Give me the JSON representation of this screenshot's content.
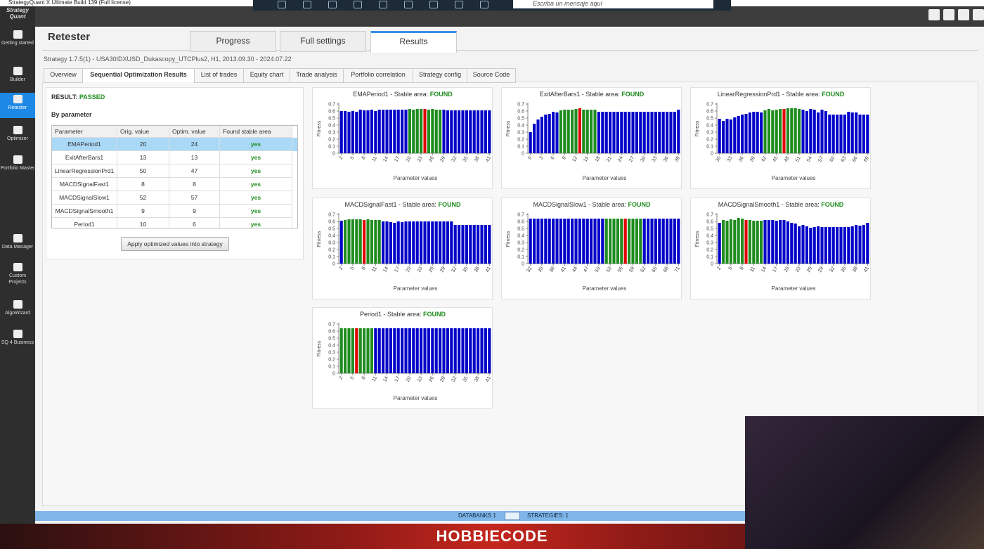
{
  "window_title": "StrategyQuant X Ultimate Build 139 (Full license)",
  "logo": "Strategy Quant",
  "message_placeholder": "Escriba un mensaje aquí",
  "sidebar": [
    "Getting started",
    "Builder",
    "Retester",
    "Optimizer",
    "Portfolio Master",
    "Data Manager",
    "Custom Projects",
    "AlgoWizard",
    "SQ 4 Business"
  ],
  "active_sidebar": 2,
  "page_title": "Retester",
  "tabs": [
    "Progress",
    "Full settings",
    "Results"
  ],
  "active_tab": 2,
  "strategy_info": "Strategy 1.7.5(1) - USA30IDXUSD_Dukascopy_UTCPlus2, H1, 2013.09.30 - 2024.07.22",
  "subtabs": [
    "Overview",
    "Sequential Optimization Results",
    "List of trades",
    "Equity chart",
    "Trade analysis",
    "Portfolio correlation",
    "Strategy config",
    "Source Code"
  ],
  "active_subtab": 1,
  "result_label": "RESULT:",
  "result": "PASSED",
  "section": "By parameter",
  "table": {
    "columns": [
      "Parameter",
      "Orig. value",
      "Optim. value",
      "Found stable area"
    ],
    "rows": [
      [
        "EMAPeriod1",
        20,
        24,
        "yes"
      ],
      [
        "ExitAfterBars1",
        13,
        13,
        "yes"
      ],
      [
        "LinearRegressionPrd1",
        50,
        47,
        "yes"
      ],
      [
        "MACDSignalFast1",
        8,
        8,
        "yes"
      ],
      [
        "MACDSignalSlow1",
        52,
        57,
        "yes"
      ],
      [
        "MACDSignalSmooth1",
        9,
        9,
        "yes"
      ],
      [
        "Period1",
        10,
        6,
        "yes"
      ]
    ],
    "selected_row": 0
  },
  "button": "Apply optimized values into strategy",
  "bar_colors": {
    "bar": "#0000c8",
    "stable": "#1e8c1e",
    "selected": "#e00000"
  },
  "charts": [
    {
      "type": "bar",
      "title": "EMAPeriod1 - Stable area:",
      "status": "FOUND",
      "ylabel": "Fitness",
      "xlabel": "Parameter values",
      "x": [
        2,
        3,
        4,
        5,
        6,
        7,
        8,
        9,
        10,
        11,
        12,
        13,
        14,
        15,
        16,
        17,
        18,
        19,
        20,
        21,
        22,
        23,
        24,
        25,
        26,
        27,
        28,
        29,
        30,
        31,
        32,
        33,
        34,
        35,
        36,
        37,
        38,
        39,
        40,
        41
      ],
      "values": [
        0.6,
        0.6,
        0.59,
        0.6,
        0.59,
        0.62,
        0.61,
        0.61,
        0.62,
        0.6,
        0.62,
        0.62,
        0.62,
        0.62,
        0.62,
        0.62,
        0.62,
        0.62,
        0.63,
        0.62,
        0.63,
        0.63,
        0.63,
        0.62,
        0.63,
        0.62,
        0.62,
        0.62,
        0.61,
        0.61,
        0.61,
        0.61,
        0.61,
        0.61,
        0.61,
        0.61,
        0.61,
        0.61,
        0.61,
        0.61
      ],
      "stable_area": [
        20,
        28
      ],
      "selected": 24,
      "xlim": [
        2,
        41
      ],
      "xticks": [
        2,
        5,
        8,
        11,
        14,
        17,
        20,
        23,
        26,
        29,
        32,
        35,
        38,
        41
      ],
      "ylim": [
        0,
        0.7
      ],
      "yticks": [
        0,
        0.1,
        0.2,
        0.3,
        0.4,
        0.5,
        0.6,
        0.7
      ]
    },
    {
      "type": "bar",
      "title": "ExitAfterBars1 - Stable area:",
      "status": "FOUND",
      "ylabel": "Fitness",
      "xlabel": "Parameter values",
      "x": [
        0,
        1,
        2,
        3,
        4,
        5,
        6,
        7,
        8,
        9,
        10,
        11,
        12,
        13,
        14,
        15,
        16,
        17,
        18,
        19,
        20,
        21,
        22,
        23,
        24,
        25,
        26,
        27,
        28,
        29,
        30,
        31,
        32,
        33,
        34,
        35,
        36,
        37,
        38,
        39
      ],
      "values": [
        0.3,
        0.42,
        0.48,
        0.52,
        0.55,
        0.56,
        0.59,
        0.58,
        0.61,
        0.62,
        0.62,
        0.62,
        0.63,
        0.64,
        0.62,
        0.62,
        0.62,
        0.62,
        0.59,
        0.59,
        0.59,
        0.59,
        0.59,
        0.59,
        0.59,
        0.59,
        0.59,
        0.59,
        0.59,
        0.59,
        0.59,
        0.59,
        0.59,
        0.59,
        0.59,
        0.59,
        0.59,
        0.59,
        0.59,
        0.62
      ],
      "stable_area": [
        8,
        17
      ],
      "selected": 13,
      "xlim": [
        0,
        39
      ],
      "xticks": [
        0,
        3,
        6,
        9,
        12,
        15,
        18,
        21,
        24,
        27,
        30,
        33,
        36,
        39
      ],
      "ylim": [
        0,
        0.7
      ],
      "yticks": [
        0,
        0.1,
        0.2,
        0.3,
        0.4,
        0.5,
        0.6,
        0.7
      ]
    },
    {
      "type": "bar",
      "title": "LinearRegressionPrd1 - Stable area:",
      "status": "FOUND",
      "ylabel": "Fitness",
      "xlabel": "Parameter values",
      "x": [
        30,
        31,
        32,
        33,
        34,
        35,
        36,
        37,
        38,
        39,
        40,
        41,
        42,
        43,
        44,
        45,
        46,
        47,
        48,
        49,
        50,
        51,
        52,
        53,
        54,
        55,
        56,
        57,
        58,
        59,
        60,
        61,
        62,
        63,
        64,
        65,
        66,
        67,
        68,
        69
      ],
      "values": [
        0.49,
        0.46,
        0.49,
        0.48,
        0.51,
        0.53,
        0.55,
        0.56,
        0.58,
        0.59,
        0.59,
        0.58,
        0.61,
        0.63,
        0.61,
        0.62,
        0.63,
        0.63,
        0.64,
        0.64,
        0.64,
        0.63,
        0.62,
        0.6,
        0.63,
        0.62,
        0.58,
        0.62,
        0.6,
        0.55,
        0.55,
        0.55,
        0.55,
        0.55,
        0.59,
        0.58,
        0.58,
        0.55,
        0.55,
        0.55
      ],
      "stable_area": [
        42,
        51
      ],
      "selected": 47,
      "xlim": [
        30,
        69
      ],
      "xticks": [
        30,
        33,
        36,
        39,
        42,
        45,
        48,
        51,
        54,
        57,
        60,
        63,
        66,
        69
      ],
      "ylim": [
        0,
        0.7
      ],
      "yticks": [
        0,
        0.1,
        0.2,
        0.3,
        0.4,
        0.5,
        0.6,
        0.7
      ]
    },
    {
      "type": "bar",
      "title": "MACDSignalFast1 - Stable area:",
      "status": "FOUND",
      "ylabel": "Fitness",
      "xlabel": "Parameter values",
      "x": [
        2,
        3,
        4,
        5,
        6,
        7,
        8,
        9,
        10,
        11,
        12,
        13,
        14,
        15,
        16,
        17,
        18,
        19,
        20,
        21,
        22,
        23,
        24,
        25,
        26,
        27,
        28,
        29,
        30,
        31,
        32,
        33,
        34,
        35,
        36,
        37,
        38,
        39,
        40,
        41
      ],
      "values": [
        0.61,
        0.62,
        0.63,
        0.63,
        0.63,
        0.63,
        0.62,
        0.63,
        0.62,
        0.62,
        0.62,
        0.6,
        0.6,
        0.59,
        0.58,
        0.6,
        0.59,
        0.6,
        0.6,
        0.6,
        0.6,
        0.6,
        0.6,
        0.6,
        0.6,
        0.6,
        0.6,
        0.6,
        0.6,
        0.6,
        0.55,
        0.55,
        0.55,
        0.55,
        0.55,
        0.55,
        0.55,
        0.55,
        0.55,
        0.55
      ],
      "stable_area": [
        3,
        12
      ],
      "selected": 8,
      "xlim": [
        2,
        41
      ],
      "xticks": [
        2,
        5,
        8,
        11,
        14,
        17,
        20,
        23,
        26,
        29,
        32,
        35,
        38,
        41
      ],
      "ylim": [
        0,
        0.7
      ],
      "yticks": [
        0,
        0.1,
        0.2,
        0.3,
        0.4,
        0.5,
        0.6,
        0.7
      ]
    },
    {
      "type": "bar",
      "title": "MACDSignalSlow1 - Stable area:",
      "status": "FOUND",
      "ylabel": "Fitness",
      "xlabel": "Parameter values",
      "x": [
        32,
        33,
        34,
        35,
        36,
        37,
        38,
        39,
        40,
        41,
        42,
        43,
        44,
        45,
        46,
        47,
        48,
        49,
        50,
        51,
        52,
        53,
        54,
        55,
        56,
        57,
        58,
        59,
        60,
        61,
        62,
        63,
        64,
        65,
        66,
        67,
        68,
        69,
        70,
        71
      ],
      "values": [
        0.64,
        0.64,
        0.64,
        0.64,
        0.64,
        0.64,
        0.64,
        0.64,
        0.64,
        0.64,
        0.64,
        0.64,
        0.64,
        0.64,
        0.64,
        0.64,
        0.64,
        0.64,
        0.64,
        0.64,
        0.64,
        0.64,
        0.64,
        0.64,
        0.64,
        0.64,
        0.64,
        0.64,
        0.64,
        0.64,
        0.64,
        0.64,
        0.64,
        0.64,
        0.64,
        0.64,
        0.64,
        0.64,
        0.64,
        0.64
      ],
      "stable_area": [
        52,
        61
      ],
      "selected": 57,
      "xlim": [
        32,
        71
      ],
      "xticks": [
        32,
        35,
        38,
        41,
        44,
        47,
        50,
        53,
        56,
        59,
        62,
        65,
        68,
        71
      ],
      "ylim": [
        0,
        0.7
      ],
      "yticks": [
        0,
        0.1,
        0.2,
        0.3,
        0.4,
        0.5,
        0.6,
        0.7
      ]
    },
    {
      "type": "bar",
      "title": "MACDSignalSmooth1 - Stable area:",
      "status": "FOUND",
      "ylabel": "Fitness",
      "xlabel": "Parameter values",
      "x": [
        2,
        3,
        4,
        5,
        6,
        7,
        8,
        9,
        10,
        11,
        12,
        13,
        14,
        15,
        16,
        17,
        18,
        19,
        20,
        21,
        22,
        23,
        24,
        25,
        26,
        27,
        28,
        29,
        30,
        31,
        32,
        33,
        34,
        35,
        36,
        37,
        38,
        39,
        40,
        41
      ],
      "values": [
        0.58,
        0.62,
        0.61,
        0.63,
        0.62,
        0.65,
        0.64,
        0.62,
        0.62,
        0.61,
        0.61,
        0.61,
        0.62,
        0.62,
        0.62,
        0.61,
        0.62,
        0.62,
        0.6,
        0.58,
        0.57,
        0.53,
        0.55,
        0.53,
        0.51,
        0.52,
        0.53,
        0.52,
        0.52,
        0.52,
        0.52,
        0.52,
        0.52,
        0.52,
        0.52,
        0.53,
        0.55,
        0.54,
        0.55,
        0.58
      ],
      "stable_area": [
        3,
        13
      ],
      "selected": 9,
      "xlim": [
        2,
        41
      ],
      "xticks": [
        2,
        5,
        8,
        11,
        14,
        17,
        20,
        23,
        26,
        29,
        32,
        35,
        38,
        41
      ],
      "ylim": [
        0,
        0.7
      ],
      "yticks": [
        0,
        0.1,
        0.2,
        0.3,
        0.4,
        0.5,
        0.6,
        0.7
      ]
    },
    {
      "type": "bar",
      "title": "Period1 - Stable area:",
      "status": "FOUND",
      "ylabel": "Fitness",
      "xlabel": "Parameter values",
      "x": [
        2,
        3,
        4,
        5,
        6,
        7,
        8,
        9,
        10,
        11,
        12,
        13,
        14,
        15,
        16,
        17,
        18,
        19,
        20,
        21,
        22,
        23,
        24,
        25,
        26,
        27,
        28,
        29,
        30,
        31,
        32,
        33,
        34,
        35,
        36,
        37,
        38,
        39,
        40,
        41
      ],
      "values": [
        0.64,
        0.64,
        0.64,
        0.64,
        0.64,
        0.64,
        0.64,
        0.64,
        0.64,
        0.64,
        0.64,
        0.64,
        0.64,
        0.64,
        0.64,
        0.64,
        0.64,
        0.64,
        0.64,
        0.64,
        0.64,
        0.64,
        0.64,
        0.64,
        0.64,
        0.64,
        0.64,
        0.64,
        0.64,
        0.64,
        0.64,
        0.64,
        0.64,
        0.64,
        0.64,
        0.64,
        0.64,
        0.64,
        0.64,
        0.64
      ],
      "stable_area": [
        2,
        10
      ],
      "selected": 6,
      "xlim": [
        2,
        41
      ],
      "xticks": [
        2,
        5,
        8,
        11,
        14,
        17,
        20,
        23,
        26,
        29,
        32,
        35,
        38,
        41
      ],
      "ylim": [
        0,
        0.7
      ],
      "yticks": [
        0,
        0.1,
        0.2,
        0.3,
        0.4,
        0.5,
        0.6,
        0.7
      ]
    }
  ],
  "status_bar": {
    "databanks": "DATABANKS 1",
    "strategies": "STRATEGIES: 1"
  },
  "banner": "HOBBIECODE"
}
